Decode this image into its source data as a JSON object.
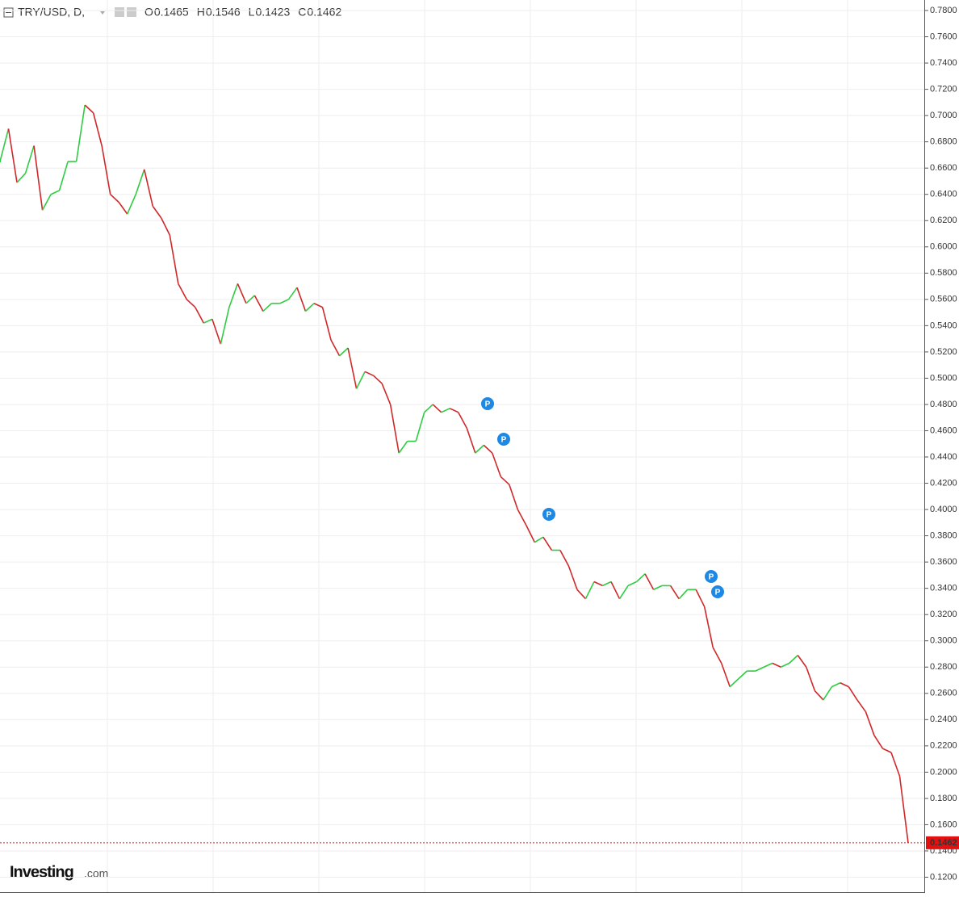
{
  "chart_data": {
    "type": "line",
    "title": "TRY/USD, D,",
    "ohlc": [
      {
        "label": "O",
        "value": 0.1465
      },
      {
        "label": "H",
        "value": 0.1546
      },
      {
        "label": "L",
        "value": 0.1423
      },
      {
        "label": "C",
        "value": 0.1462
      }
    ],
    "values": [
      0.665,
      0.69,
      0.649,
      0.656,
      0.677,
      0.628,
      0.64,
      0.643,
      0.665,
      0.665,
      0.708,
      0.702,
      0.677,
      0.64,
      0.634,
      0.625,
      0.64,
      0.659,
      0.631,
      0.622,
      0.609,
      0.572,
      0.56,
      0.554,
      0.542,
      0.545,
      0.526,
      0.554,
      0.572,
      0.557,
      0.563,
      0.551,
      0.557,
      0.557,
      0.56,
      0.569,
      0.551,
      0.557,
      0.554,
      0.529,
      0.517,
      0.523,
      0.492,
      0.505,
      0.502,
      0.496,
      0.48,
      0.443,
      0.452,
      0.452,
      0.474,
      0.48,
      0.474,
      0.477,
      0.474,
      0.462,
      0.443,
      0.449,
      0.443,
      0.425,
      0.419,
      0.4,
      0.388,
      0.375,
      0.379,
      0.369,
      0.369,
      0.357,
      0.339,
      0.332,
      0.345,
      0.342,
      0.345,
      0.332,
      0.342,
      0.345,
      0.351,
      0.339,
      0.342,
      0.342,
      0.332,
      0.339,
      0.339,
      0.326,
      0.295,
      0.283,
      0.265,
      0.271,
      0.277,
      0.277,
      0.28,
      0.283,
      0.28,
      0.283,
      0.289,
      0.28,
      0.262,
      0.255,
      0.265,
      0.268,
      0.265,
      0.255,
      0.246,
      0.228,
      0.218,
      0.215,
      0.197,
      0.1462
    ],
    "up_color": "#2ecc40",
    "down_color": "#d0282a",
    "current_price": 0.1462,
    "markers": [
      "P",
      "P",
      "P",
      "P",
      "P"
    ],
    "ylim": [
      0.108,
      0.788
    ],
    "yticks": [
      {
        "value": 0.12,
        "label": "0.1200"
      },
      {
        "value": 0.14,
        "label": "0.1400"
      },
      {
        "value": 0.16,
        "label": "0.1600"
      },
      {
        "value": 0.18,
        "label": "0.1800"
      },
      {
        "value": 0.2,
        "label": "0.2000"
      },
      {
        "value": 0.22,
        "label": "0.2200"
      },
      {
        "value": 0.24,
        "label": "0.2400"
      },
      {
        "value": 0.26,
        "label": "0.2600"
      },
      {
        "value": 0.28,
        "label": "0.2800"
      },
      {
        "value": 0.3,
        "label": "0.3000"
      },
      {
        "value": 0.32,
        "label": "0.3200"
      },
      {
        "value": 0.34,
        "label": "0.3400"
      },
      {
        "value": 0.36,
        "label": "0.3600"
      },
      {
        "value": 0.38,
        "label": "0.3800"
      },
      {
        "value": 0.4,
        "label": "0.4000"
      },
      {
        "value": 0.42,
        "label": "0.4200"
      },
      {
        "value": 0.44,
        "label": "0.4400"
      },
      {
        "value": 0.46,
        "label": "0.4600"
      },
      {
        "value": 0.48,
        "label": "0.4800"
      },
      {
        "value": 0.5,
        "label": "0.5000"
      },
      {
        "value": 0.52,
        "label": "0.5200"
      },
      {
        "value": 0.54,
        "label": "0.5400"
      },
      {
        "value": 0.56,
        "label": "0.5600"
      },
      {
        "value": 0.58,
        "label": "0.5800"
      },
      {
        "value": 0.6,
        "label": "0.6000"
      },
      {
        "value": 0.62,
        "label": "0.6200"
      },
      {
        "value": 0.64,
        "label": "0.6400"
      },
      {
        "value": 0.66,
        "label": "0.6600"
      },
      {
        "value": 0.68,
        "label": "0.6800"
      },
      {
        "value": 0.7,
        "label": "0.7000"
      },
      {
        "value": 0.72,
        "label": "0.7200"
      },
      {
        "value": 0.74,
        "label": "0.7400"
      },
      {
        "value": 0.76,
        "label": "0.7600"
      },
      {
        "value": 0.78,
        "label": "0.7800"
      }
    ],
    "grid": true,
    "logo": {
      "main": "Investing",
      "suffix": ".com"
    }
  }
}
